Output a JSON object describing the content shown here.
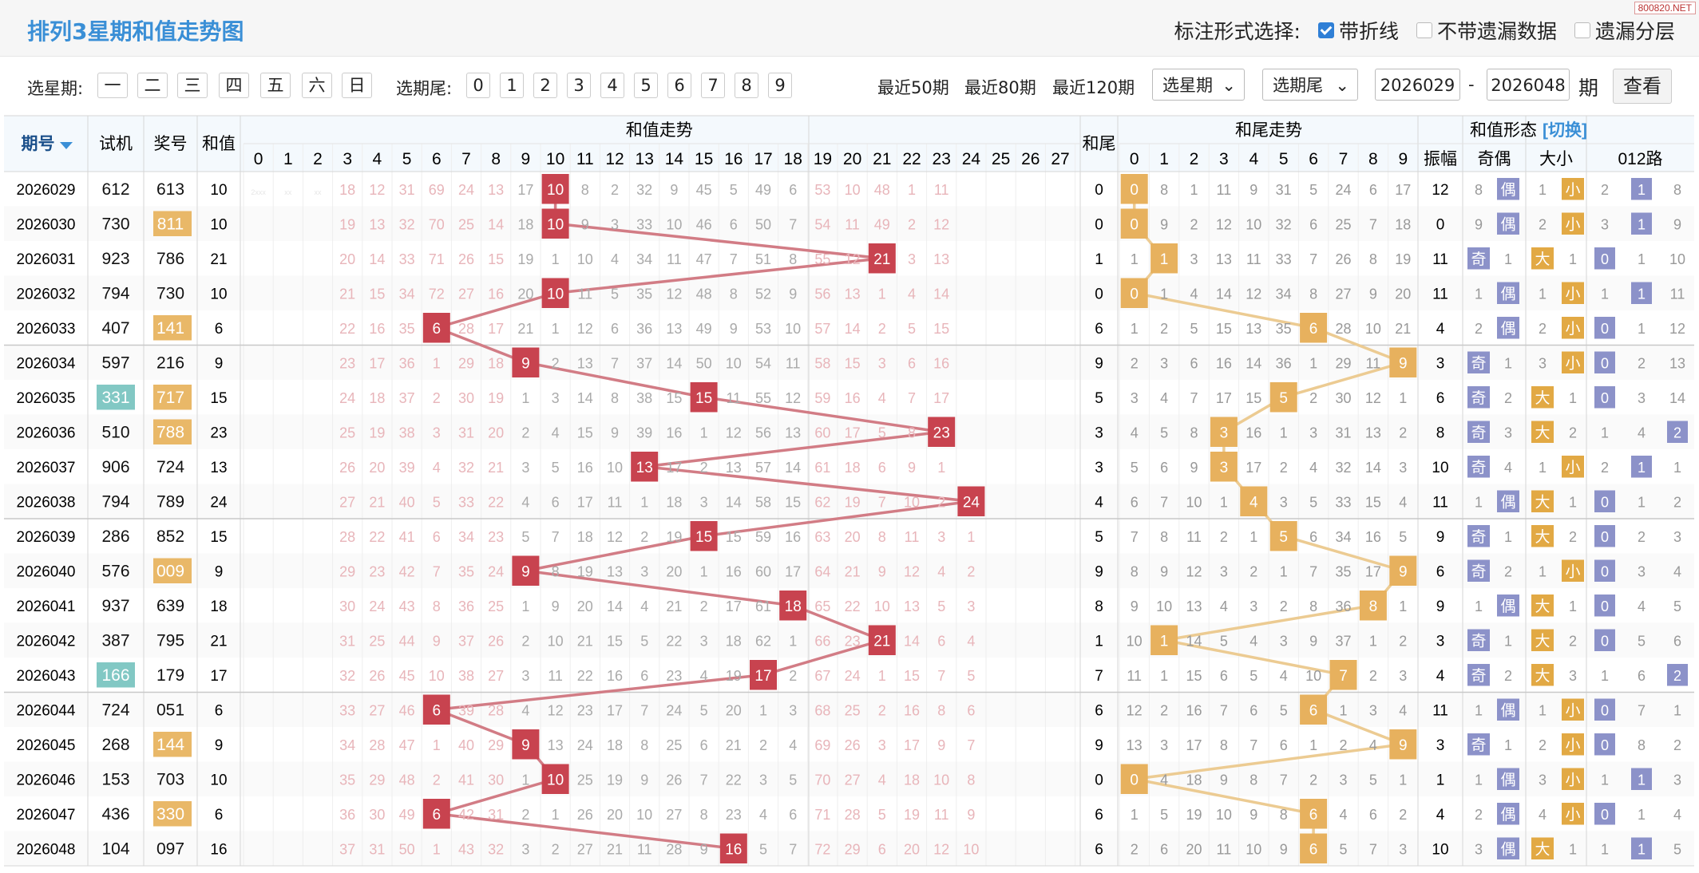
{
  "title": "排列3星期和值走势图",
  "label_options": {
    "label": "标注形式选择:",
    "options": [
      {
        "label": "带折线",
        "checked": true
      },
      {
        "label": "不带遗漏数据",
        "checked": false
      },
      {
        "label": "遗漏分层",
        "checked": false
      }
    ]
  },
  "watermark": "800820.NET",
  "filters": {
    "weekday_label": "选星期:",
    "weekdays": [
      "一",
      "二",
      "三",
      "四",
      "五",
      "六",
      "日"
    ],
    "tail_label": "选期尾:",
    "tails": [
      "0",
      "1",
      "2",
      "3",
      "4",
      "5",
      "6",
      "7",
      "8",
      "9"
    ],
    "quick": [
      "最近50期",
      "最近80期",
      "最近120期"
    ],
    "select_weekday": "选星期",
    "select_tail": "选期尾",
    "from": "2026029",
    "dash": "-",
    "to": "2026048",
    "period_unit": "期",
    "view_button": "查看"
  },
  "header": {
    "issue": "期号",
    "trial": "试机",
    "draw": "奖号",
    "sum": "和值",
    "sum_trend": "和值走势",
    "tail": "和尾",
    "tail_trend": "和尾走势",
    "form": "和值形态",
    "switch": "[切换]",
    "amp": "振幅",
    "oddeven": "奇偶",
    "bigsmall": "大小",
    "route": "012路",
    "sum_cols": [
      "0",
      "1",
      "2",
      "3",
      "4",
      "5",
      "6",
      "7",
      "8",
      "9",
      "10",
      "11",
      "12",
      "13",
      "14",
      "15",
      "16",
      "17",
      "18",
      "19",
      "20",
      "21",
      "22",
      "23",
      "24",
      "25",
      "26",
      "27"
    ],
    "tail_cols": [
      "0",
      "1",
      "2",
      "3",
      "4",
      "5",
      "6",
      "7",
      "8",
      "9"
    ]
  },
  "colors": {
    "accent": "#3a8fd6",
    "sum_marker": "#c8434f",
    "tail_marker": "#e7b15e",
    "trial_hl": "#82c8c4",
    "draw_hl": "#e9b868",
    "odd": "#8c92c9",
    "small": "#e2a944"
  },
  "rows": [
    {
      "issue": "2026029",
      "trial": "612",
      "draw": "613",
      "sum": 10,
      "tail": 0,
      "amp": "12",
      "trial_hl": false,
      "draw_hl": false,
      "sum_miss": [
        "2xxx",
        "xx",
        "xx",
        "18",
        "12",
        "31",
        "69",
        "24",
        "13",
        "17",
        "10",
        "8",
        "2",
        "32",
        "9",
        "45",
        "5",
        "49",
        "6",
        "53",
        "10",
        "48",
        "1",
        "11",
        "",
        "",
        "",
        ""
      ],
      "tail_miss": [
        "0",
        "8",
        "1",
        "11",
        "9",
        "31",
        "5",
        "24",
        "6",
        "17"
      ],
      "oe": [
        "8",
        "偶"
      ],
      "bs": [
        "1",
        "小"
      ],
      "r": [
        "2",
        "1",
        "8"
      ]
    },
    {
      "issue": "2026030",
      "trial": "730",
      "draw": "811",
      "sum": 10,
      "tail": 0,
      "amp": "0",
      "trial_hl": false,
      "draw_hl": true,
      "sum_miss": [
        "",
        "",
        "",
        "19",
        "13",
        "32",
        "70",
        "25",
        "14",
        "18",
        "10",
        "9",
        "3",
        "33",
        "10",
        "46",
        "6",
        "50",
        "7",
        "54",
        "11",
        "49",
        "2",
        "12",
        "",
        "",
        "",
        ""
      ],
      "tail_miss": [
        "0",
        "9",
        "2",
        "12",
        "10",
        "32",
        "6",
        "25",
        "7",
        "18"
      ],
      "oe": [
        "9",
        "偶"
      ],
      "bs": [
        "2",
        "小"
      ],
      "r": [
        "3",
        "1",
        "9"
      ]
    },
    {
      "issue": "2026031",
      "trial": "923",
      "draw": "786",
      "sum": 21,
      "tail": 1,
      "amp": "11",
      "trial_hl": false,
      "draw_hl": false,
      "sum_miss": [
        "",
        "",
        "",
        "20",
        "14",
        "33",
        "71",
        "26",
        "15",
        "19",
        "1",
        "10",
        "4",
        "34",
        "11",
        "47",
        "7",
        "51",
        "8",
        "55",
        "12",
        "21",
        "3",
        "13",
        "",
        "",
        "",
        ""
      ],
      "tail_miss": [
        "1",
        "1",
        "3",
        "13",
        "11",
        "33",
        "7",
        "26",
        "8",
        "19"
      ],
      "oe": [
        "奇",
        "1"
      ],
      "bs": [
        "大",
        "1"
      ],
      "r": [
        "0",
        "1",
        "10"
      ]
    },
    {
      "issue": "2026032",
      "trial": "794",
      "draw": "730",
      "sum": 10,
      "tail": 0,
      "amp": "11",
      "trial_hl": false,
      "draw_hl": false,
      "sum_miss": [
        "",
        "",
        "",
        "21",
        "15",
        "34",
        "72",
        "27",
        "16",
        "20",
        "10",
        "11",
        "5",
        "35",
        "12",
        "48",
        "8",
        "52",
        "9",
        "56",
        "13",
        "1",
        "4",
        "14",
        "",
        "",
        "",
        ""
      ],
      "tail_miss": [
        "0",
        "1",
        "4",
        "14",
        "12",
        "34",
        "8",
        "27",
        "9",
        "20"
      ],
      "oe": [
        "1",
        "偶"
      ],
      "bs": [
        "1",
        "小"
      ],
      "r": [
        "1",
        "1",
        "11"
      ]
    },
    {
      "issue": "2026033",
      "trial": "407",
      "draw": "141",
      "sum": 6,
      "tail": 6,
      "amp": "4",
      "trial_hl": false,
      "draw_hl": true,
      "sum_miss": [
        "",
        "",
        "",
        "22",
        "16",
        "35",
        "6",
        "28",
        "17",
        "21",
        "1",
        "12",
        "6",
        "36",
        "13",
        "49",
        "9",
        "53",
        "10",
        "57",
        "14",
        "2",
        "5",
        "15",
        "",
        "",
        "",
        ""
      ],
      "tail_miss": [
        "1",
        "2",
        "5",
        "15",
        "13",
        "35",
        "6",
        "28",
        "10",
        "21"
      ],
      "oe": [
        "2",
        "偶"
      ],
      "bs": [
        "2",
        "小"
      ],
      "r": [
        "0",
        "1",
        "12"
      ]
    },
    {
      "issue": "2026034",
      "trial": "597",
      "draw": "216",
      "sum": 9,
      "tail": 9,
      "amp": "3",
      "trial_hl": false,
      "draw_hl": false,
      "sum_miss": [
        "",
        "",
        "",
        "23",
        "17",
        "36",
        "1",
        "29",
        "18",
        "9",
        "2",
        "13",
        "7",
        "37",
        "14",
        "50",
        "10",
        "54",
        "11",
        "58",
        "15",
        "3",
        "6",
        "16",
        "",
        "",
        "",
        ""
      ],
      "tail_miss": [
        "2",
        "3",
        "6",
        "16",
        "14",
        "36",
        "1",
        "29",
        "11",
        "9"
      ],
      "oe": [
        "奇",
        "1"
      ],
      "bs": [
        "3",
        "小"
      ],
      "r": [
        "0",
        "2",
        "13"
      ]
    },
    {
      "issue": "2026035",
      "trial": "331",
      "draw": "717",
      "sum": 15,
      "tail": 5,
      "amp": "6",
      "trial_hl": true,
      "draw_hl": true,
      "sum_miss": [
        "",
        "",
        "",
        "24",
        "18",
        "37",
        "2",
        "30",
        "19",
        "1",
        "3",
        "14",
        "8",
        "38",
        "15",
        "15",
        "11",
        "55",
        "12",
        "59",
        "16",
        "4",
        "7",
        "17",
        "",
        "",
        "",
        ""
      ],
      "tail_miss": [
        "3",
        "4",
        "7",
        "17",
        "15",
        "5",
        "2",
        "30",
        "12",
        "1"
      ],
      "oe": [
        "奇",
        "2"
      ],
      "bs": [
        "大",
        "1"
      ],
      "r": [
        "0",
        "3",
        "14"
      ]
    },
    {
      "issue": "2026036",
      "trial": "510",
      "draw": "788",
      "sum": 23,
      "tail": 3,
      "amp": "8",
      "trial_hl": false,
      "draw_hl": true,
      "sum_miss": [
        "",
        "",
        "",
        "25",
        "19",
        "38",
        "3",
        "31",
        "20",
        "2",
        "4",
        "15",
        "9",
        "39",
        "16",
        "1",
        "12",
        "56",
        "13",
        "60",
        "17",
        "5",
        "8",
        "23",
        "",
        "",
        "",
        ""
      ],
      "tail_miss": [
        "4",
        "5",
        "8",
        "3",
        "16",
        "1",
        "3",
        "31",
        "13",
        "2"
      ],
      "oe": [
        "奇",
        "3"
      ],
      "bs": [
        "大",
        "2"
      ],
      "r": [
        "1",
        "4",
        "2"
      ]
    },
    {
      "issue": "2026037",
      "trial": "906",
      "draw": "724",
      "sum": 13,
      "tail": 3,
      "amp": "10",
      "trial_hl": false,
      "draw_hl": false,
      "sum_miss": [
        "",
        "",
        "",
        "26",
        "20",
        "39",
        "4",
        "32",
        "21",
        "3",
        "5",
        "16",
        "10",
        "13",
        "17",
        "2",
        "13",
        "57",
        "14",
        "61",
        "18",
        "6",
        "9",
        "1",
        "",
        "",
        "",
        ""
      ],
      "tail_miss": [
        "5",
        "6",
        "9",
        "3",
        "17",
        "2",
        "4",
        "32",
        "14",
        "3"
      ],
      "oe": [
        "奇",
        "4"
      ],
      "bs": [
        "1",
        "小"
      ],
      "r": [
        "2",
        "1",
        "1"
      ]
    },
    {
      "issue": "2026038",
      "trial": "794",
      "draw": "789",
      "sum": 24,
      "tail": 4,
      "amp": "11",
      "trial_hl": false,
      "draw_hl": false,
      "sum_miss": [
        "",
        "",
        "",
        "27",
        "21",
        "40",
        "5",
        "33",
        "22",
        "4",
        "6",
        "17",
        "11",
        "1",
        "18",
        "3",
        "14",
        "58",
        "15",
        "62",
        "19",
        "7",
        "10",
        "2",
        "24",
        "",
        "",
        ""
      ],
      "tail_miss": [
        "6",
        "7",
        "10",
        "1",
        "4",
        "3",
        "5",
        "33",
        "15",
        "4"
      ],
      "oe": [
        "1",
        "偶"
      ],
      "bs": [
        "大",
        "1"
      ],
      "r": [
        "0",
        "1",
        "2"
      ]
    },
    {
      "issue": "2026039",
      "trial": "286",
      "draw": "852",
      "sum": 15,
      "tail": 5,
      "amp": "9",
      "trial_hl": false,
      "draw_hl": false,
      "sum_miss": [
        "",
        "",
        "",
        "28",
        "22",
        "41",
        "6",
        "34",
        "23",
        "5",
        "7",
        "18",
        "12",
        "2",
        "19",
        "15",
        "15",
        "59",
        "16",
        "63",
        "20",
        "8",
        "11",
        "3",
        "1",
        "",
        "",
        ""
      ],
      "tail_miss": [
        "7",
        "8",
        "11",
        "2",
        "1",
        "5",
        "6",
        "34",
        "16",
        "5"
      ],
      "oe": [
        "奇",
        "1"
      ],
      "bs": [
        "大",
        "2"
      ],
      "r": [
        "0",
        "2",
        "3"
      ]
    },
    {
      "issue": "2026040",
      "trial": "576",
      "draw": "009",
      "sum": 9,
      "tail": 9,
      "amp": "6",
      "trial_hl": false,
      "draw_hl": true,
      "sum_miss": [
        "",
        "",
        "",
        "29",
        "23",
        "42",
        "7",
        "35",
        "24",
        "9",
        "8",
        "19",
        "13",
        "3",
        "20",
        "1",
        "16",
        "60",
        "17",
        "64",
        "21",
        "9",
        "12",
        "4",
        "2",
        "",
        "",
        ""
      ],
      "tail_miss": [
        "8",
        "9",
        "12",
        "3",
        "2",
        "1",
        "7",
        "35",
        "17",
        "9"
      ],
      "oe": [
        "奇",
        "2"
      ],
      "bs": [
        "1",
        "小"
      ],
      "r": [
        "0",
        "3",
        "4"
      ]
    },
    {
      "issue": "2026041",
      "trial": "937",
      "draw": "639",
      "sum": 18,
      "tail": 8,
      "amp": "9",
      "trial_hl": false,
      "draw_hl": false,
      "sum_miss": [
        "",
        "",
        "",
        "30",
        "24",
        "43",
        "8",
        "36",
        "25",
        "1",
        "9",
        "20",
        "14",
        "4",
        "21",
        "2",
        "17",
        "61",
        "18",
        "65",
        "22",
        "10",
        "13",
        "5",
        "3",
        "",
        "",
        ""
      ],
      "tail_miss": [
        "9",
        "10",
        "13",
        "4",
        "3",
        "2",
        "8",
        "36",
        "8",
        "1"
      ],
      "oe": [
        "1",
        "偶"
      ],
      "bs": [
        "大",
        "1"
      ],
      "r": [
        "0",
        "4",
        "5"
      ]
    },
    {
      "issue": "2026042",
      "trial": "387",
      "draw": "795",
      "sum": 21,
      "tail": 1,
      "amp": "3",
      "trial_hl": false,
      "draw_hl": false,
      "sum_miss": [
        "",
        "",
        "",
        "31",
        "25",
        "44",
        "9",
        "37",
        "26",
        "2",
        "10",
        "21",
        "15",
        "5",
        "22",
        "3",
        "18",
        "62",
        "1",
        "66",
        "23",
        "21",
        "14",
        "6",
        "4",
        "",
        "",
        ""
      ],
      "tail_miss": [
        "10",
        "1",
        "14",
        "5",
        "4",
        "3",
        "9",
        "37",
        "1",
        "2"
      ],
      "oe": [
        "奇",
        "1"
      ],
      "bs": [
        "大",
        "2"
      ],
      "r": [
        "0",
        "5",
        "6"
      ]
    },
    {
      "issue": "2026043",
      "trial": "166",
      "draw": "179",
      "sum": 17,
      "tail": 7,
      "amp": "4",
      "trial_hl": true,
      "draw_hl": false,
      "sum_miss": [
        "",
        "",
        "",
        "32",
        "26",
        "45",
        "10",
        "38",
        "27",
        "3",
        "11",
        "22",
        "16",
        "6",
        "23",
        "4",
        "19",
        "17",
        "2",
        "67",
        "24",
        "1",
        "15",
        "7",
        "5",
        "",
        "",
        ""
      ],
      "tail_miss": [
        "11",
        "1",
        "15",
        "6",
        "5",
        "4",
        "10",
        "7",
        "2",
        "3"
      ],
      "oe": [
        "奇",
        "2"
      ],
      "bs": [
        "大",
        "3"
      ],
      "r": [
        "1",
        "6",
        "2"
      ]
    },
    {
      "issue": "2026044",
      "trial": "724",
      "draw": "051",
      "sum": 6,
      "tail": 6,
      "amp": "11",
      "trial_hl": false,
      "draw_hl": false,
      "sum_miss": [
        "",
        "",
        "",
        "33",
        "27",
        "46",
        "6",
        "39",
        "28",
        "4",
        "12",
        "23",
        "17",
        "7",
        "24",
        "5",
        "20",
        "1",
        "3",
        "68",
        "25",
        "2",
        "16",
        "8",
        "6",
        "",
        "",
        ""
      ],
      "tail_miss": [
        "12",
        "2",
        "16",
        "7",
        "6",
        "5",
        "6",
        "1",
        "3",
        "4"
      ],
      "oe": [
        "1",
        "偶"
      ],
      "bs": [
        "1",
        "小"
      ],
      "r": [
        "0",
        "7",
        "1"
      ]
    },
    {
      "issue": "2026045",
      "trial": "268",
      "draw": "144",
      "sum": 9,
      "tail": 9,
      "amp": "3",
      "trial_hl": false,
      "draw_hl": true,
      "sum_miss": [
        "",
        "",
        "",
        "34",
        "28",
        "47",
        "1",
        "40",
        "29",
        "9",
        "13",
        "24",
        "18",
        "8",
        "25",
        "6",
        "21",
        "2",
        "4",
        "69",
        "26",
        "3",
        "17",
        "9",
        "7",
        "",
        "",
        ""
      ],
      "tail_miss": [
        "13",
        "3",
        "17",
        "8",
        "7",
        "6",
        "1",
        "2",
        "4",
        "9"
      ],
      "oe": [
        "奇",
        "1"
      ],
      "bs": [
        "2",
        "小"
      ],
      "r": [
        "0",
        "8",
        "2"
      ]
    },
    {
      "issue": "2026046",
      "trial": "153",
      "draw": "703",
      "sum": 10,
      "tail": 0,
      "amp": "1",
      "trial_hl": false,
      "draw_hl": false,
      "sum_miss": [
        "",
        "",
        "",
        "35",
        "29",
        "48",
        "2",
        "41",
        "30",
        "1",
        "10",
        "25",
        "19",
        "9",
        "26",
        "7",
        "22",
        "3",
        "5",
        "70",
        "27",
        "4",
        "18",
        "10",
        "8",
        "",
        "",
        ""
      ],
      "tail_miss": [
        "0",
        "4",
        "18",
        "9",
        "8",
        "7",
        "2",
        "3",
        "5",
        "1"
      ],
      "oe": [
        "1",
        "偶"
      ],
      "bs": [
        "3",
        "小"
      ],
      "r": [
        "1",
        "1",
        "3"
      ]
    },
    {
      "issue": "2026047",
      "trial": "436",
      "draw": "330",
      "sum": 6,
      "tail": 6,
      "amp": "4",
      "trial_hl": false,
      "draw_hl": true,
      "sum_miss": [
        "",
        "",
        "",
        "36",
        "30",
        "49",
        "6",
        "42",
        "31",
        "2",
        "1",
        "26",
        "20",
        "10",
        "27",
        "8",
        "23",
        "4",
        "6",
        "71",
        "28",
        "5",
        "19",
        "11",
        "9",
        "",
        "",
        ""
      ],
      "tail_miss": [
        "1",
        "5",
        "19",
        "10",
        "9",
        "8",
        "6",
        "4",
        "6",
        "2"
      ],
      "oe": [
        "2",
        "偶"
      ],
      "bs": [
        "4",
        "小"
      ],
      "r": [
        "0",
        "1",
        "4"
      ]
    },
    {
      "issue": "2026048",
      "trial": "104",
      "draw": "097",
      "sum": 16,
      "tail": 6,
      "amp": "10",
      "trial_hl": false,
      "draw_hl": false,
      "sum_miss": [
        "",
        "",
        "",
        "37",
        "31",
        "50",
        "1",
        "43",
        "32",
        "3",
        "2",
        "27",
        "21",
        "11",
        "28",
        "9",
        "16",
        "5",
        "7",
        "72",
        "29",
        "6",
        "20",
        "12",
        "10",
        "",
        "",
        ""
      ],
      "tail_miss": [
        "2",
        "6",
        "20",
        "11",
        "10",
        "9",
        "6",
        "5",
        "7",
        "3"
      ],
      "oe": [
        "3",
        "偶"
      ],
      "bs": [
        "大",
        "1"
      ],
      "r": [
        "1",
        "1",
        "5"
      ]
    }
  ]
}
